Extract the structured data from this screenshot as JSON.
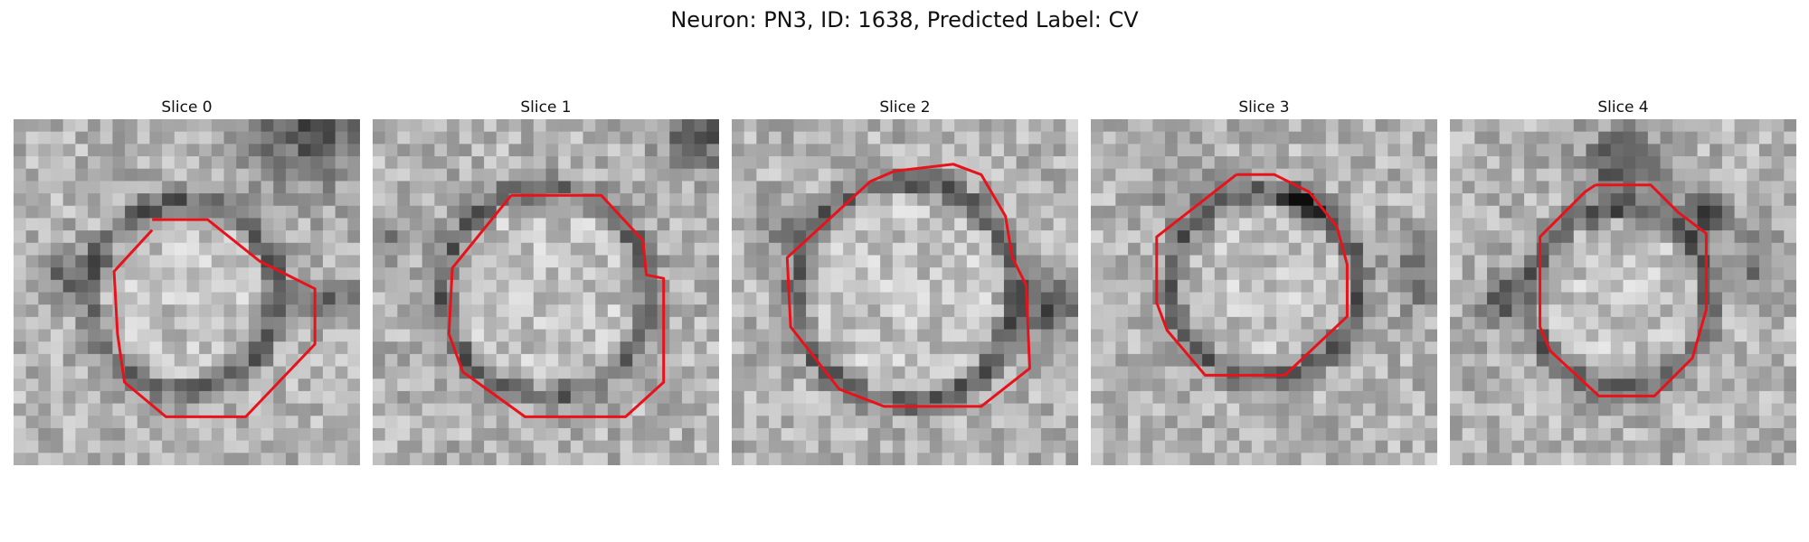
{
  "figure": {
    "title": "Neuron: PN3, ID: 1638, Predicted Label: CV",
    "colors": {
      "background": "#ffffff",
      "contour": "#e8121b"
    },
    "colormap": "gray",
    "panels": [
      {
        "title": "Slice 0"
      },
      {
        "title": "Slice 1"
      },
      {
        "title": "Slice 2"
      },
      {
        "title": "Slice 3"
      },
      {
        "title": "Slice 4"
      }
    ]
  }
}
